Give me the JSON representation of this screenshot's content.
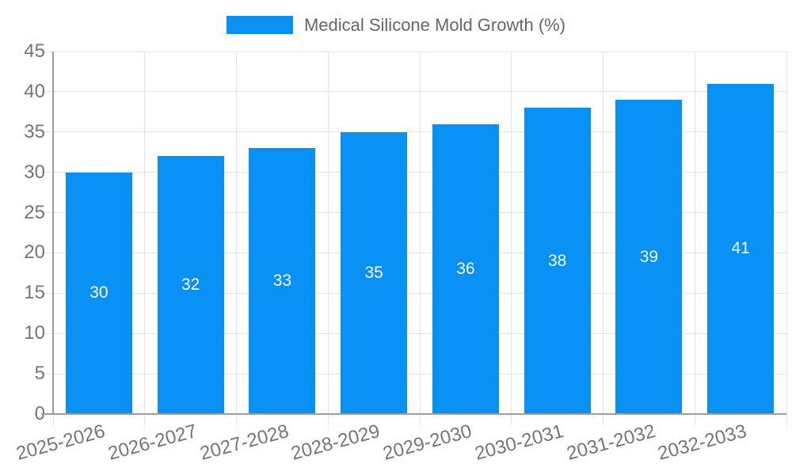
{
  "legend": {
    "label": "Medical Silicone Mold Growth (%)"
  },
  "chart_data": {
    "type": "bar",
    "title": "Medical Silicone Mold Growth (%)",
    "series_name": "Medical Silicone Mold Growth (%)",
    "categories": [
      "2025-2026",
      "2026-2027",
      "2027-2028",
      "2028-2029",
      "2029-2030",
      "2030-2031",
      "2031-2032",
      "2032-2033"
    ],
    "values": [
      30,
      32,
      33,
      35,
      36,
      38,
      39,
      41
    ],
    "bar_value_labels": [
      "30",
      "32",
      "33",
      "35",
      "36",
      "38",
      "39",
      "41"
    ],
    "xlabel": "",
    "ylabel": "",
    "ylim": [
      0,
      45
    ],
    "yticks": [
      0,
      5,
      10,
      15,
      20,
      25,
      30,
      35,
      40,
      45
    ],
    "grid": true,
    "legend_position": "top",
    "x_tick_rotation_deg": -15,
    "colors": {
      "bar": "#0890f2",
      "bar_label": "#ffffff",
      "gridline": "#e3e3e3",
      "axis_line": "#9e9e9e",
      "tick_label": "#757575",
      "legend_text": "#666666",
      "background": "#ffffff"
    }
  }
}
